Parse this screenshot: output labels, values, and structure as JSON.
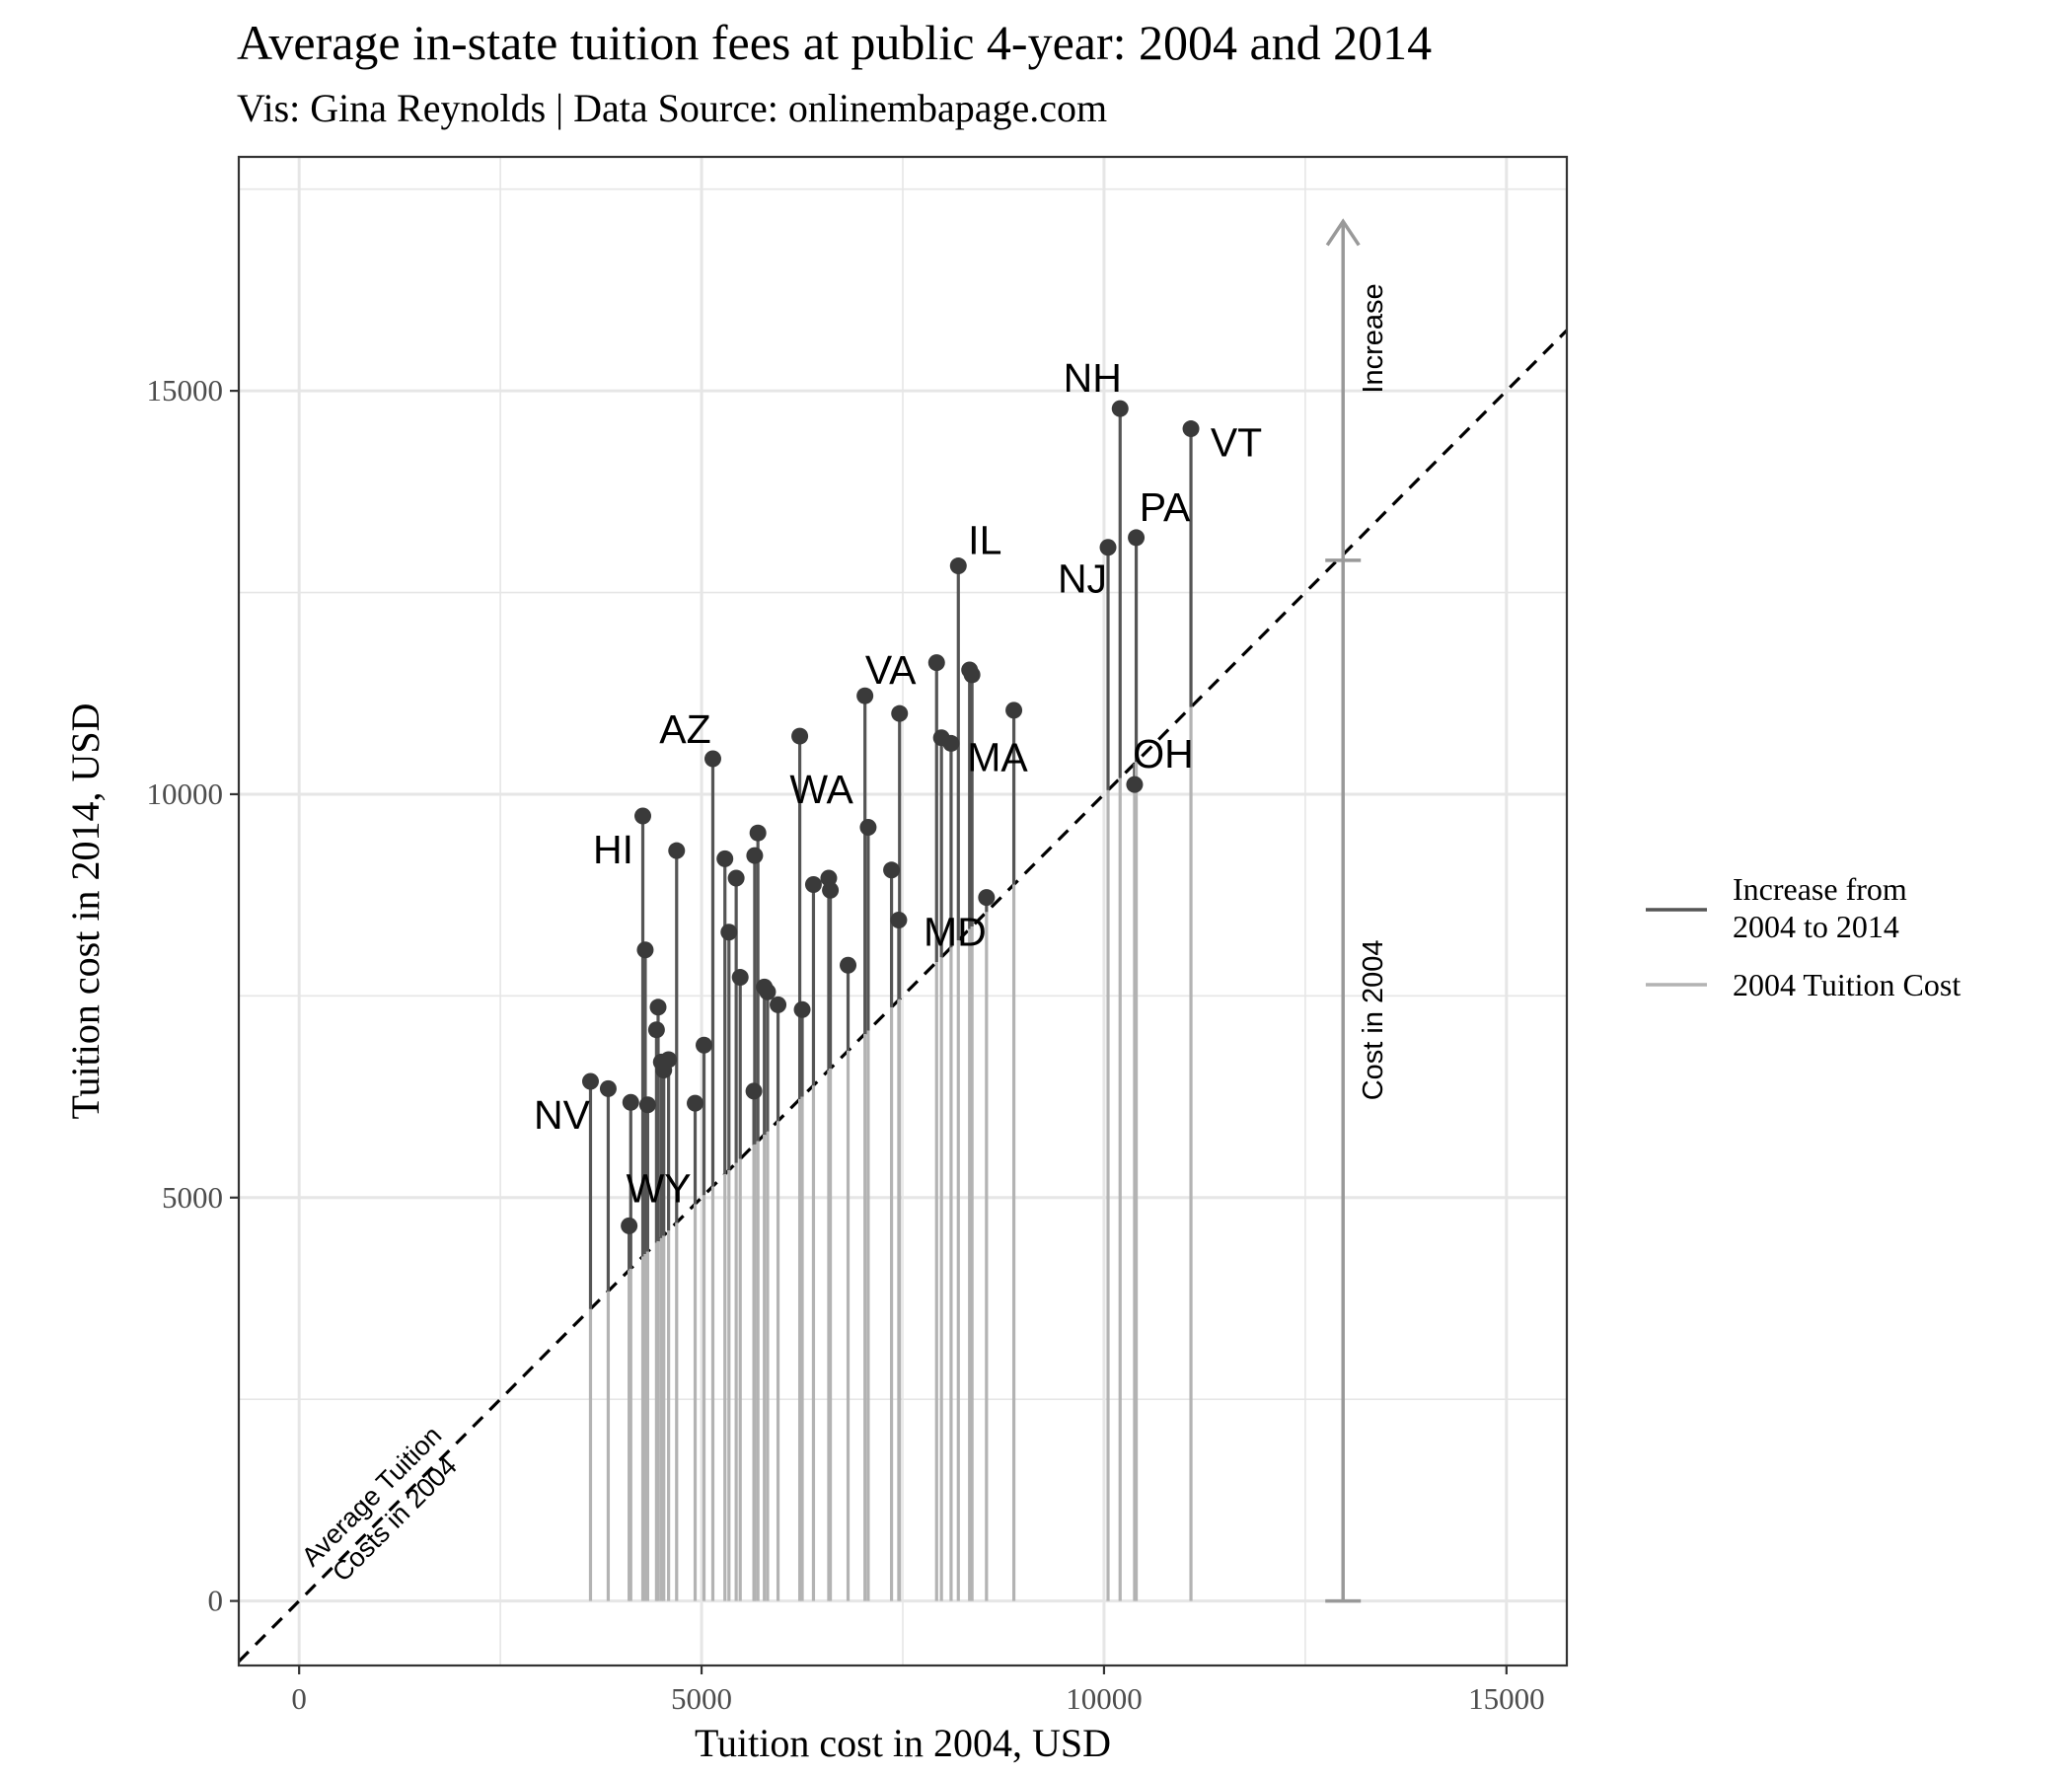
{
  "chart_data": {
    "type": "scatter",
    "title": "Average in-state tuition fees at public 4-year: 2004 and 2014",
    "subtitle": "Vis: Gina Reynolds | Data Source: onlinembapage.com",
    "xlabel": "Tuition cost in 2004, USD",
    "ylabel": "Tuition cost in 2014, USD",
    "xlim": [
      -750,
      15750
    ],
    "ylim": [
      -800,
      17900
    ],
    "x_ticks": [
      0,
      5000,
      10000,
      15000
    ],
    "y_ticks": [
      0,
      5000,
      10000,
      15000
    ],
    "x_tick_labels": [
      "0",
      "5000",
      "10000",
      "15000"
    ],
    "y_tick_labels": [
      "0",
      "5000",
      "10000",
      "15000"
    ],
    "grid": true,
    "legend_position": "right",
    "legend": [
      {
        "label": "Increase from\n2004 to 2014",
        "color": "#555555"
      },
      {
        "label": "2004 Tuition Cost",
        "color": "#b3b3b3"
      }
    ],
    "reference_line": {
      "style": "dashed",
      "slope": 1,
      "intercept": 0,
      "label": "Average Tuition\nCosts in 2004"
    },
    "guide": {
      "x": 12970,
      "baseline": 0,
      "value_2004": 12900,
      "arrow_top": 17100,
      "label_2004": "Cost in 2004",
      "label_increase": "Increase"
    },
    "colors": {
      "point": "#3a3a3a",
      "increase_line": "#555555",
      "base_line": "#b3b3b3",
      "guide": "#999999",
      "grid": "#e6e6e6"
    },
    "points": [
      {
        "x": 3620,
        "y": 6440,
        "label": "NV"
      },
      {
        "x": 3840,
        "y": 6350
      },
      {
        "x": 4100,
        "y": 4650,
        "label": "WY"
      },
      {
        "x": 4120,
        "y": 6180
      },
      {
        "x": 4270,
        "y": 9730,
        "label": "HI"
      },
      {
        "x": 4300,
        "y": 8070
      },
      {
        "x": 4330,
        "y": 6150
      },
      {
        "x": 4440,
        "y": 7080
      },
      {
        "x": 4460,
        "y": 7360
      },
      {
        "x": 4500,
        "y": 6680
      },
      {
        "x": 4530,
        "y": 6580
      },
      {
        "x": 4590,
        "y": 6710
      },
      {
        "x": 4690,
        "y": 9300
      },
      {
        "x": 4920,
        "y": 6170
      },
      {
        "x": 5030,
        "y": 6890
      },
      {
        "x": 5140,
        "y": 10440,
        "label": "AZ"
      },
      {
        "x": 5290,
        "y": 9200
      },
      {
        "x": 5340,
        "y": 8290
      },
      {
        "x": 5430,
        "y": 8960
      },
      {
        "x": 5480,
        "y": 7730
      },
      {
        "x": 5650,
        "y": 6320
      },
      {
        "x": 5660,
        "y": 9240
      },
      {
        "x": 5700,
        "y": 9520
      },
      {
        "x": 5780,
        "y": 7610
      },
      {
        "x": 5820,
        "y": 7550
      },
      {
        "x": 5950,
        "y": 7390
      },
      {
        "x": 6220,
        "y": 10720,
        "label": "WA"
      },
      {
        "x": 6250,
        "y": 7330
      },
      {
        "x": 6390,
        "y": 8880
      },
      {
        "x": 6580,
        "y": 8960
      },
      {
        "x": 6600,
        "y": 8810
      },
      {
        "x": 6820,
        "y": 7880
      },
      {
        "x": 7030,
        "y": 11220,
        "label": "VA"
      },
      {
        "x": 7070,
        "y": 9590
      },
      {
        "x": 7360,
        "y": 9060
      },
      {
        "x": 7450,
        "y": 8440,
        "label": "MD"
      },
      {
        "x": 7460,
        "y": 11000
      },
      {
        "x": 7920,
        "y": 11630
      },
      {
        "x": 7980,
        "y": 10700
      },
      {
        "x": 8100,
        "y": 10630,
        "label": "MA"
      },
      {
        "x": 8190,
        "y": 12830,
        "label": "IL"
      },
      {
        "x": 8330,
        "y": 11540
      },
      {
        "x": 8360,
        "y": 11480
      },
      {
        "x": 8540,
        "y": 8720
      },
      {
        "x": 8880,
        "y": 11040
      },
      {
        "x": 10050,
        "y": 13060,
        "label": "NJ"
      },
      {
        "x": 10200,
        "y": 14780,
        "label": "NH"
      },
      {
        "x": 10380,
        "y": 10120,
        "label": "OH"
      },
      {
        "x": 10400,
        "y": 13180,
        "label": "PA"
      },
      {
        "x": 11080,
        "y": 14530,
        "label": "VT"
      }
    ]
  }
}
